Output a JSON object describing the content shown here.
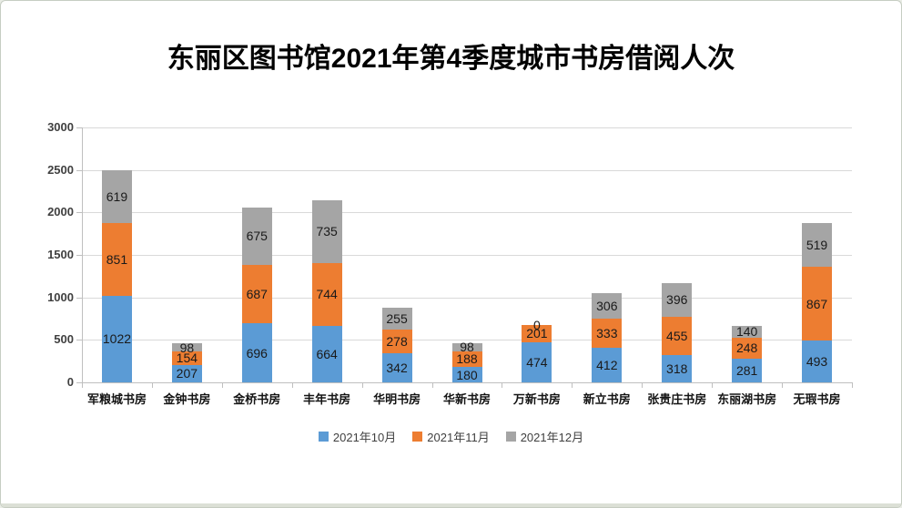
{
  "title": "东丽区图书馆2021年第4季度城市书房借阅人次",
  "chart_data": {
    "type": "bar",
    "stacked": true,
    "title": "东丽区图书馆2021年第4季度城市书房借阅人次",
    "categories": [
      "军粮城书房",
      "金钟书房",
      "金桥书房",
      "丰年书房",
      "华明书房",
      "华新书房",
      "万新书房",
      "新立书房",
      "张贵庄书房",
      "东丽湖书房",
      "无瑕书房"
    ],
    "series": [
      {
        "name": "2021年10月",
        "color": "#5B9BD5",
        "values": [
          1022,
          207,
          696,
          664,
          342,
          180,
          474,
          412,
          318,
          281,
          493
        ]
      },
      {
        "name": "2021年11月",
        "color": "#ED7D31",
        "values": [
          851,
          154,
          687,
          744,
          278,
          188,
          201,
          333,
          455,
          248,
          867
        ]
      },
      {
        "name": "2021年12月",
        "color": "#A5A5A5",
        "values": [
          619,
          98,
          675,
          735,
          255,
          98,
          0,
          306,
          396,
          140,
          519
        ]
      }
    ],
    "xlabel": "",
    "ylabel": "",
    "ylim": [
      0,
      3000
    ],
    "yticks": [
      0,
      500,
      1000,
      1500,
      2000,
      2500,
      3000
    ],
    "grid": true,
    "data_labels": true,
    "legend_position": "bottom",
    "gridline_color": "#d9d9d9",
    "axis_color": "#bfbfbf",
    "data_label_color": "#1a1a1a",
    "axis_label_color": "#404040",
    "category_label_color": "#141414"
  }
}
